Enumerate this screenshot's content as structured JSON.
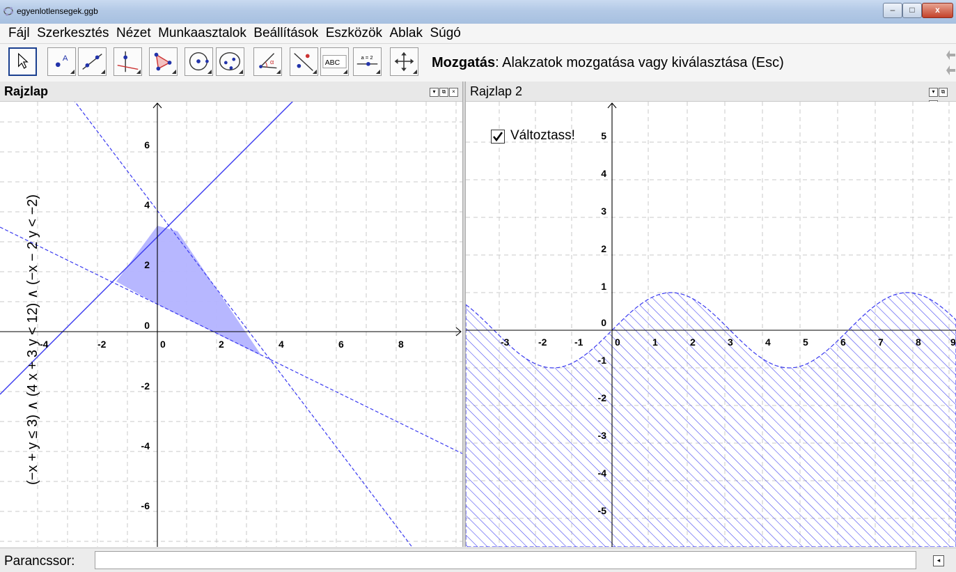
{
  "window": {
    "title": "egyenlotlensegek.ggb"
  },
  "menu": [
    "Fájl",
    "Szerkesztés",
    "Nézet",
    "Munkaasztalok",
    "Beállítások",
    "Eszközök",
    "Ablak",
    "Súgó"
  ],
  "toolbar": {
    "tools": [
      {
        "name": "move-tool-button",
        "icon": "arrow-cursor-icon",
        "active": true
      },
      {
        "name": "point-tool-button",
        "icon": "point-icon"
      },
      {
        "name": "line-tool-button",
        "icon": "line-icon"
      },
      {
        "name": "perpendicular-tool-button",
        "icon": "perpendicular-line-icon"
      },
      {
        "name": "polygon-tool-button",
        "icon": "polygon-icon"
      },
      {
        "name": "circle-tool-button",
        "icon": "circle-icon"
      },
      {
        "name": "conic-tool-button",
        "icon": "ellipse-icon"
      },
      {
        "name": "angle-tool-button",
        "icon": "angle-icon"
      },
      {
        "name": "reflect-tool-button",
        "icon": "reflect-icon"
      },
      {
        "name": "text-tool-button",
        "icon": "text-icon",
        "label": "ABC"
      },
      {
        "name": "slider-tool-button",
        "icon": "slider-icon",
        "label": "a = 2"
      },
      {
        "name": "move-view-tool-button",
        "icon": "move-view-icon"
      }
    ],
    "help_bold": "Mozgatás",
    "help_rest": ": Alakzatok mozgatása vagy kiválasztása (Esc)"
  },
  "panel1": {
    "title": "Rajzlap",
    "xticks": [
      "-4",
      "-2",
      "0",
      "2",
      "4",
      "6",
      "8"
    ],
    "yticks": [
      "6",
      "4",
      "2",
      "0",
      "-2",
      "-4",
      "-6"
    ],
    "vertical_label": "(−x + y ≤ 3) ∧ (4 x + 3 y < 12) ∧ (−x − 2 y < −2)"
  },
  "panel2": {
    "title": "Rajzlap 2",
    "xticks": [
      "-3",
      "-2",
      "-1",
      "0",
      "1",
      "2",
      "3",
      "4",
      "5",
      "6",
      "7",
      "8",
      "9"
    ],
    "yticks": [
      "5",
      "4",
      "3",
      "2",
      "1",
      "0",
      "-1",
      "-2",
      "-3",
      "-4",
      "-5"
    ],
    "checkbox": {
      "label": "Változtass!",
      "checked": true
    }
  },
  "colors": {
    "accent": "#1a3f8f",
    "line": "#3a3af0",
    "fill": "#b3b3ff",
    "grid": "#c8c8c8"
  },
  "command": {
    "label": "Parancssor:",
    "value": ""
  }
}
